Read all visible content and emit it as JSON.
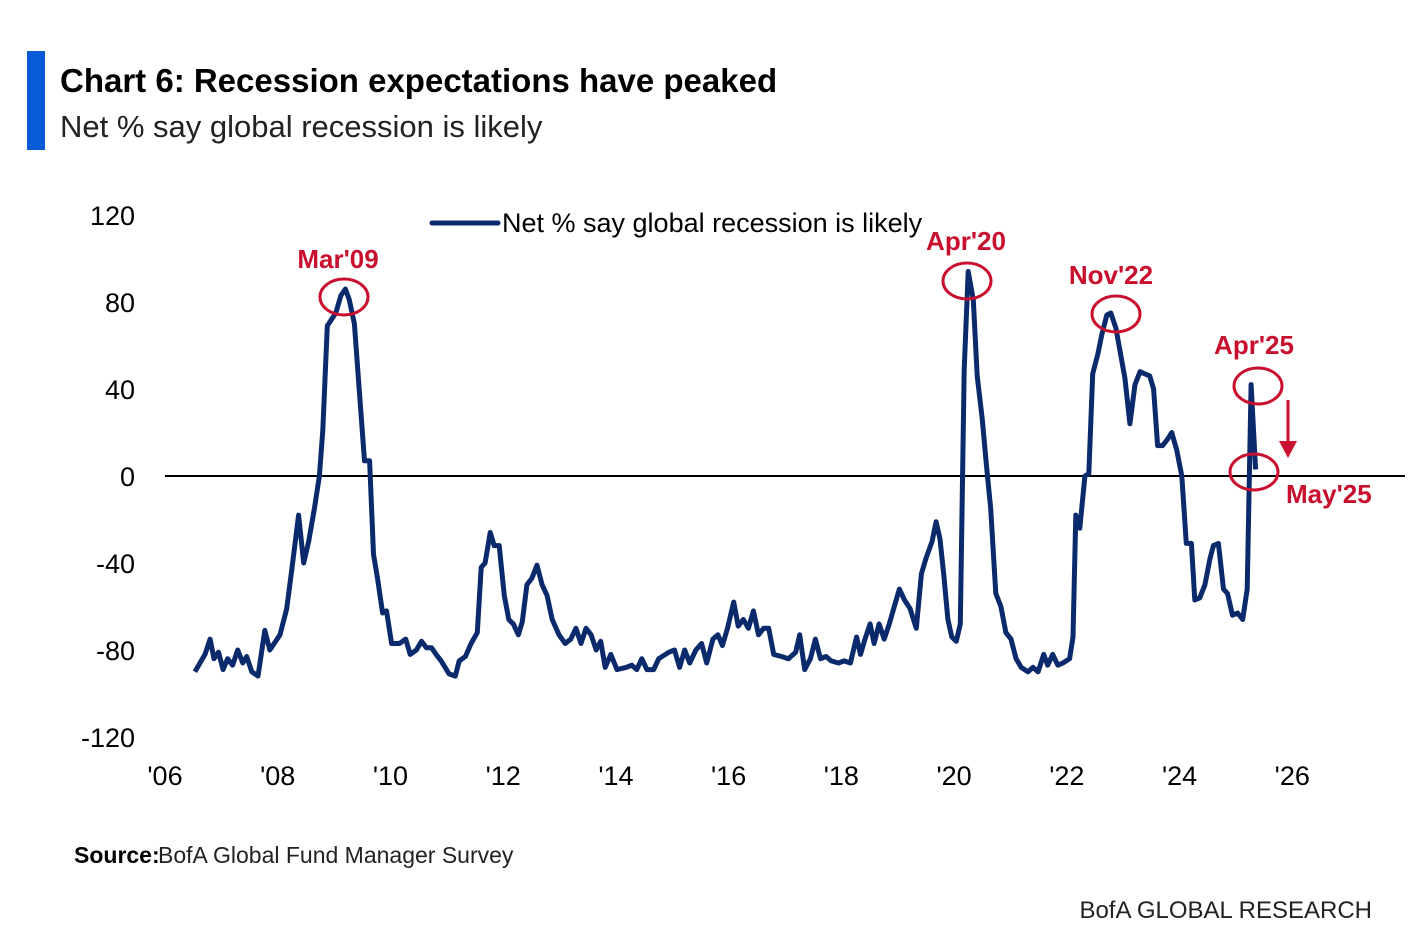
{
  "chart_data": {
    "type": "line",
    "title": "Chart 6: Recession expectations have peaked",
    "subtitle": "Net % say global recession is likely",
    "source_label": "Source:",
    "source": "BofA Global Fund Manager Survey",
    "brand": "BofA GLOBAL RESEARCH",
    "annotations": [
      "Mar'09",
      "Apr'20",
      "Nov'22",
      "Apr'25",
      "May'25"
    ],
    "xlim": [
      2006,
      2028
    ],
    "xticks": [
      {
        "value": 2006,
        "label": "'06"
      },
      {
        "value": 2008,
        "label": "'08"
      },
      {
        "value": 2010,
        "label": "'10"
      },
      {
        "value": 2012,
        "label": "'12"
      },
      {
        "value": 2014,
        "label": "'14"
      },
      {
        "value": 2016,
        "label": "'16"
      },
      {
        "value": 2018,
        "label": "'18"
      },
      {
        "value": 2020,
        "label": "'20"
      },
      {
        "value": 2022,
        "label": "'22"
      },
      {
        "value": 2024,
        "label": "'24"
      },
      {
        "value": 2026,
        "label": "'26"
      }
    ],
    "ylim": [
      -120,
      120
    ],
    "yticks": [
      120,
      80,
      40,
      0,
      -40,
      -80,
      -120
    ],
    "grid": false,
    "x": [
      2006.53,
      2006.71,
      2006.8,
      2006.87,
      2006.95,
      2007.03,
      2007.11,
      2007.2,
      2007.29,
      2007.38,
      2007.45,
      2007.54,
      2007.65,
      2007.77,
      2007.86,
      2008.04,
      2008.16,
      2008.25,
      2008.37,
      2008.46,
      2008.55,
      2008.65,
      2008.74,
      2008.8,
      2008.88,
      2009.03,
      2009.12,
      2009.2,
      2009.27,
      2009.36,
      2009.45,
      2009.54,
      2009.63,
      2009.7,
      2009.77,
      2009.86,
      2009.93,
      2010.02,
      2010.16,
      2010.27,
      2010.35,
      2010.46,
      2010.55,
      2010.64,
      2010.73,
      2010.81,
      2010.9,
      2011.04,
      2011.15,
      2011.22,
      2011.33,
      2011.43,
      2011.54,
      2011.61,
      2011.68,
      2011.77,
      2011.84,
      2011.93,
      2012.02,
      2012.1,
      2012.18,
      2012.27,
      2012.34,
      2012.42,
      2012.51,
      2012.6,
      2012.69,
      2012.78,
      2012.87,
      2012.99,
      2013.1,
      2013.2,
      2013.29,
      2013.38,
      2013.47,
      2013.56,
      2013.65,
      2013.73,
      2013.81,
      2013.91,
      2014.02,
      2014.18,
      2014.28,
      2014.37,
      2014.46,
      2014.55,
      2014.67,
      2014.76,
      2014.94,
      2015.04,
      2015.13,
      2015.22,
      2015.31,
      2015.42,
      2015.52,
      2015.61,
      2015.72,
      2015.81,
      2015.89,
      2015.98,
      2016.09,
      2016.17,
      2016.26,
      2016.35,
      2016.44,
      2016.53,
      2016.62,
      2016.71,
      2016.8,
      2016.94,
      2017.06,
      2017.19,
      2017.26,
      2017.35,
      2017.45,
      2017.54,
      2017.63,
      2017.73,
      2017.82,
      2017.95,
      2018.05,
      2018.16,
      2018.27,
      2018.34,
      2018.42,
      2018.51,
      2018.58,
      2018.67,
      2018.76,
      2018.85,
      2018.94,
      2019.03,
      2019.12,
      2019.22,
      2019.33,
      2019.42,
      2019.5,
      2019.61,
      2019.68,
      2019.75,
      2019.82,
      2019.89,
      2019.96,
      2020.04,
      2020.11,
      2020.18,
      2020.25,
      2020.34,
      2020.41,
      2020.5,
      2020.57,
      2020.65,
      2020.74,
      2020.83,
      2020.92,
      2021.01,
      2021.1,
      2021.19,
      2021.31,
      2021.4,
      2021.49,
      2021.59,
      2021.66,
      2021.75,
      2021.84,
      2021.93,
      2022.05,
      2022.11,
      2022.16,
      2022.23,
      2022.32,
      2022.39,
      2022.46,
      2022.55,
      2022.62,
      2022.71,
      2022.78,
      2022.87,
      2022.94,
      2023.03,
      2023.12,
      2023.21,
      2023.3,
      2023.38,
      2023.47,
      2023.54,
      2023.61,
      2023.7,
      2023.79,
      2023.86,
      2023.95,
      2024.04,
      2024.12,
      2024.21,
      2024.27,
      2024.36,
      2024.45,
      2024.54,
      2024.6,
      2024.69,
      2024.78,
      2024.85,
      2024.94,
      2025.03,
      2025.12,
      2025.2,
      2025.27,
      2025.35
    ],
    "series": [
      {
        "name": "Net % say global recession is likely",
        "color": "#0b2a6b",
        "values": [
          -90,
          -82,
          -75,
          -84,
          -81,
          -89,
          -84,
          -87,
          -80,
          -86,
          -83,
          -90,
          -92,
          -71,
          -80,
          -73,
          -61,
          -43,
          -18,
          -40,
          -30,
          -15,
          0,
          21,
          69,
          75,
          83,
          86,
          81,
          70,
          38,
          7,
          7,
          -36,
          -47,
          -63,
          -62,
          -77,
          -77,
          -75,
          -82,
          -80,
          -76,
          -79,
          -79,
          -82,
          -85,
          -91,
          -92,
          -85,
          -83,
          -77,
          -72,
          -42,
          -40,
          -26,
          -32,
          -32,
          -55,
          -66,
          -68,
          -73,
          -67,
          -50,
          -47,
          -41,
          -50,
          -55,
          -66,
          -73,
          -77,
          -75,
          -70,
          -77,
          -70,
          -73,
          -80,
          -76,
          -88,
          -82,
          -89,
          -88,
          -87,
          -89,
          -84,
          -89,
          -89,
          -84,
          -81,
          -80,
          -88,
          -80,
          -86,
          -80,
          -77,
          -86,
          -75,
          -73,
          -78,
          -70,
          -58,
          -69,
          -66,
          -70,
          -62,
          -73,
          -70,
          -70,
          -82,
          -83,
          -84,
          -81,
          -73,
          -89,
          -84,
          -75,
          -84,
          -83,
          -85,
          -86,
          -85,
          -86,
          -74,
          -82,
          -75,
          -68,
          -77,
          -68,
          -75,
          -68,
          -60,
          -52,
          -57,
          -61,
          -70,
          -45,
          -38,
          -30,
          -21,
          -29,
          -46,
          -66,
          -74,
          -76,
          -68,
          49,
          94,
          81,
          46,
          26,
          6,
          -15,
          -54,
          -60,
          -72,
          -75,
          -84,
          -88,
          -90,
          -88,
          -90,
          -82,
          -87,
          -82,
          -87,
          -86,
          -84,
          -74,
          -18,
          -24,
          0,
          1,
          47,
          56,
          65,
          74,
          75,
          68,
          58,
          45,
          24,
          42,
          48,
          47,
          46,
          40,
          14,
          14,
          17,
          20,
          12,
          0,
          -31,
          -31,
          -57,
          -56,
          -50,
          -38,
          -32,
          -31,
          -52,
          -54,
          -64,
          -63,
          -66,
          -52,
          42,
          3
        ]
      }
    ]
  }
}
